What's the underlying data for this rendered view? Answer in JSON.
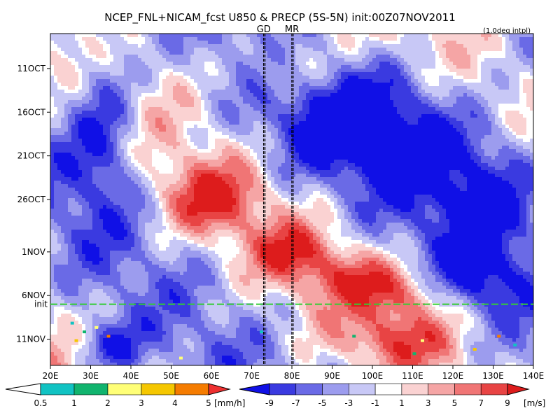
{
  "chart_data": {
    "type": "heatmap",
    "title": "NCEP_FNL+NICAM_fcst U850 & PRECP (5S-5N) init:00Z07NOV2011",
    "subtitle": "(1.0deg intpl)",
    "x_ticks": [
      "20E",
      "30E",
      "40E",
      "50E",
      "60E",
      "70E",
      "80E",
      "90E",
      "100E",
      "110E",
      "120E",
      "130E",
      "140E"
    ],
    "x_values": [
      20,
      30,
      40,
      50,
      60,
      70,
      80,
      90,
      100,
      110,
      120,
      130,
      140
    ],
    "x_range": [
      20,
      140
    ],
    "y_ticks": [
      "11OCT",
      "16OCT",
      "21OCT",
      "26OCT",
      "1NOV",
      "6NOV",
      "11NOV"
    ],
    "y_values": [
      "2011-10-11",
      "2011-10-16",
      "2011-10-21",
      "2011-10-26",
      "2011-11-01",
      "2011-11-06",
      "2011-11-11"
    ],
    "y_range": [
      "2011-10-07",
      "2011-11-14"
    ],
    "y_direction": "time increases downward",
    "init_line": {
      "label": "init",
      "date": "2011-11-07",
      "color": "#33cc33"
    },
    "markers": [
      {
        "label": "GD",
        "lon": 73,
        "color": "#dd2222"
      },
      {
        "label": "MR",
        "lon": 80,
        "color": "#dd2222"
      }
    ],
    "u850_colorbar": {
      "labels": [
        "-9",
        "-7",
        "-5",
        "-3",
        "-1",
        "1",
        "3",
        "5",
        "7",
        "9"
      ],
      "unit": "[m/s]",
      "colors": [
        "#1010e6",
        "#3a3ae0",
        "#6a6ae6",
        "#9c9cee",
        "#c8c8f6",
        "#ffffff",
        "#fad2d2",
        "#f5a5a5",
        "#f07575",
        "#e84444",
        "#dd1c1c"
      ]
    },
    "precip_colorbar": {
      "labels": [
        "0.5",
        "1",
        "2",
        "3",
        "4",
        "5"
      ],
      "unit": "[mm/h]",
      "colors": [
        "#ffffff",
        "#11c3c3",
        "#11b46e",
        "#ffff77",
        "#f5c700",
        "#f57c00",
        "#ee3030"
      ]
    }
  }
}
